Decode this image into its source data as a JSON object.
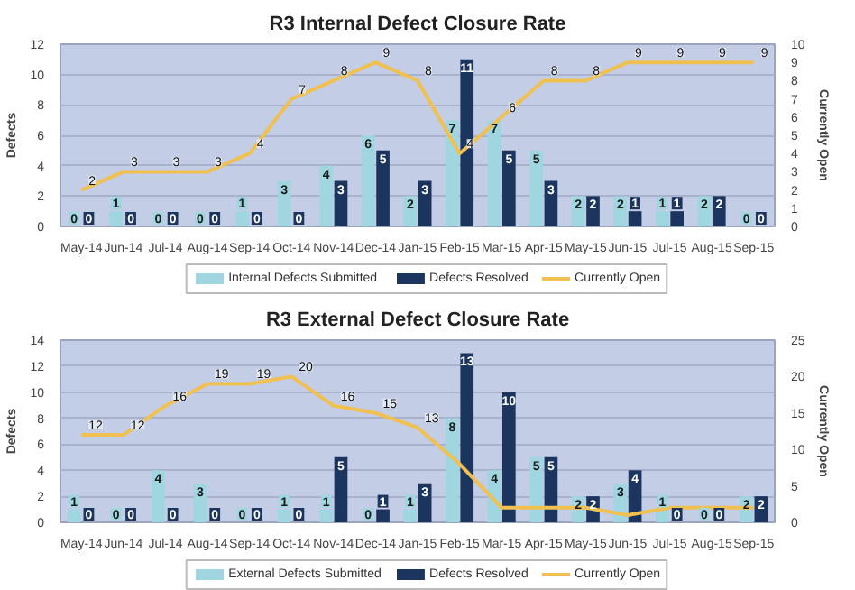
{
  "chart_data": [
    {
      "type": "bar",
      "title": "R3 Internal Defect Closure Rate",
      "ylabel": "Defects",
      "y2label": "Currently Open",
      "categories": [
        "May-14",
        "Jun-14",
        "Jul-14",
        "Aug-14",
        "Sep-14",
        "Oct-14",
        "Nov-14",
        "Dec-14",
        "Jan-15",
        "Feb-15",
        "Mar-15",
        "Apr-15",
        "May-15",
        "Jun-15",
        "Jul-15",
        "Aug-15",
        "Sep-15"
      ],
      "series": [
        {
          "name": "Internal Defects Submitted",
          "color": "#9fd6df",
          "values": [
            0,
            1,
            0,
            0,
            1,
            3,
            4,
            6,
            2,
            7,
            7,
            5,
            2,
            2,
            1,
            2,
            0
          ]
        },
        {
          "name": "Defects Resolved",
          "color": "#1c355e",
          "values": [
            0,
            0,
            0,
            0,
            0,
            0,
            3,
            5,
            3,
            11,
            5,
            3,
            2,
            1,
            1,
            2,
            0
          ]
        },
        {
          "name": "Currently Open",
          "color": "#f0c050",
          "type": "line",
          "axis": "y2",
          "values": [
            2,
            3,
            3,
            3,
            4,
            7,
            8,
            9,
            8,
            4,
            6,
            8,
            8,
            9,
            9,
            9,
            9
          ]
        }
      ],
      "ylim": [
        0,
        12
      ],
      "yticks": [
        0,
        2,
        4,
        6,
        8,
        10,
        12
      ],
      "y2lim": [
        0,
        10
      ],
      "y2ticks": [
        0,
        1,
        2,
        3,
        4,
        5,
        6,
        7,
        8,
        9,
        10
      ],
      "data_labels": true,
      "grid": "y",
      "legend": "bottom",
      "marker": "none",
      "line_style": "solid"
    },
    {
      "type": "bar",
      "title": "R3 External Defect Closure Rate",
      "ylabel": "Defects",
      "y2label": "Currently Open",
      "categories": [
        "May-14",
        "Jun-14",
        "Jul-14",
        "Aug-14",
        "Sep-14",
        "Oct-14",
        "Nov-14",
        "Dec-14",
        "Jan-15",
        "Feb-15",
        "Mar-15",
        "Apr-15",
        "May-15",
        "Jun-15",
        "Jul-15",
        "Aug-15",
        "Sep-15"
      ],
      "series": [
        {
          "name": "External Defects Submitted",
          "color": "#9fd6df",
          "values": [
            1,
            0,
            4,
            3,
            0,
            1,
            1,
            0,
            1,
            8,
            4,
            5,
            2,
            3,
            1,
            0,
            2
          ]
        },
        {
          "name": "Defects Resolved",
          "color": "#1c355e",
          "values": [
            0,
            0,
            0,
            0,
            0,
            0,
            5,
            1,
            3,
            13,
            10,
            5,
            2,
            4,
            0,
            0,
            2
          ]
        },
        {
          "name": "Currently Open",
          "color": "#f0c050",
          "type": "line",
          "axis": "y2",
          "values": [
            12,
            12,
            16,
            19,
            19,
            20,
            16,
            15,
            13,
            8,
            2,
            2,
            2,
            1,
            2,
            2,
            2
          ],
          "value_labels": [
            "12",
            "12",
            "16",
            "19",
            "19",
            "20",
            "16",
            "15",
            "13",
            null,
            null,
            null,
            null,
            null,
            null,
            null,
            null
          ]
        }
      ],
      "ylim": [
        0,
        14
      ],
      "yticks": [
        0,
        2,
        4,
        6,
        8,
        10,
        12,
        14
      ],
      "y2lim": [
        0,
        25
      ],
      "y2ticks": [
        0,
        5,
        10,
        15,
        20,
        25
      ],
      "data_labels": true,
      "grid": "y",
      "legend": "bottom",
      "marker": "none",
      "line_style": "solid"
    }
  ]
}
